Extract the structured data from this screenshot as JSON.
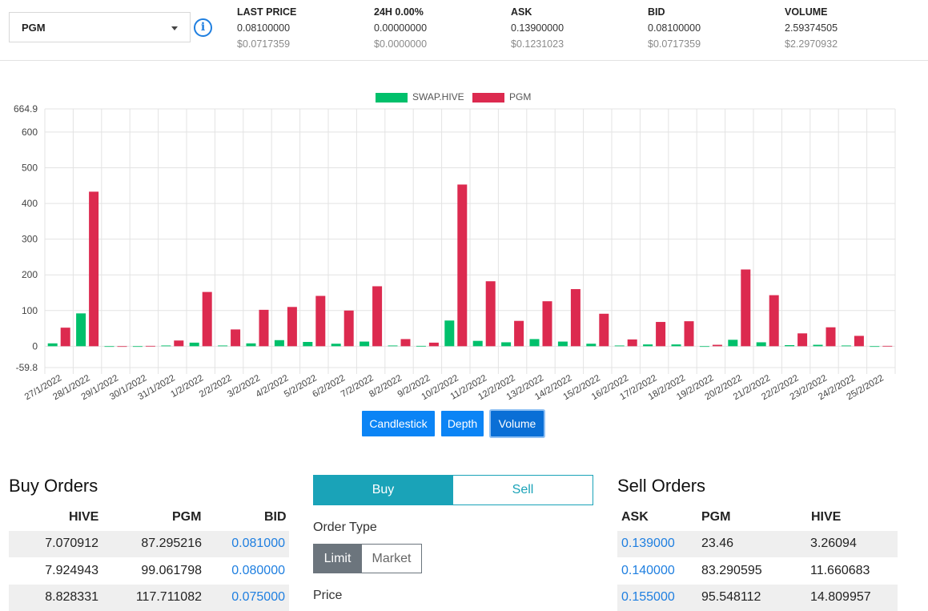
{
  "ticker": {
    "symbol": "PGM",
    "stats": [
      {
        "label": "LAST PRICE",
        "value": "0.08100000",
        "usd": "$0.0717359"
      },
      {
        "label": "24H 0.00%",
        "value": "0.00000000",
        "usd": "$0.0000000"
      },
      {
        "label": "ASK",
        "value": "0.13900000",
        "usd": "$0.1231023"
      },
      {
        "label": "BID",
        "value": "0.08100000",
        "usd": "$0.0717359"
      },
      {
        "label": "VOLUME",
        "value": "2.59374505",
        "usd": "$2.2970932"
      }
    ]
  },
  "chart_buttons": [
    {
      "label": "Candlestick",
      "active": false
    },
    {
      "label": "Depth",
      "active": false
    },
    {
      "label": "Volume",
      "active": true
    }
  ],
  "chart_data": {
    "type": "bar",
    "categories": [
      "27/1/2022",
      "28/1/2022",
      "29/1/2022",
      "30/1/2022",
      "31/1/2022",
      "1/2/2022",
      "2/2/2022",
      "3/2/2022",
      "4/2/2022",
      "5/2/2022",
      "6/2/2022",
      "7/2/2022",
      "8/2/2022",
      "9/2/2022",
      "10/2/2022",
      "11/2/2022",
      "12/2/2022",
      "13/2/2022",
      "14/2/2022",
      "15/2/2022",
      "16/2/2022",
      "17/2/2022",
      "18/2/2022",
      "19/2/2022",
      "20/2/2022",
      "21/2/2022",
      "22/2/2022",
      "23/2/2022",
      "24/2/2022",
      "25/2/2022"
    ],
    "series": [
      {
        "name": "SWAP.HIVE",
        "color": "#00c06b",
        "values": [
          8,
          92,
          0,
          0,
          2,
          10,
          2,
          8,
          17,
          12,
          7,
          13,
          2,
          1,
          72,
          15,
          11,
          20,
          13,
          7,
          2,
          5,
          5,
          0,
          18,
          11,
          3,
          4,
          2,
          0
        ]
      },
      {
        "name": "PGM",
        "color": "#dc2a4f",
        "values": [
          52,
          433,
          0,
          1,
          16,
          152,
          47,
          102,
          110,
          141,
          100,
          168,
          20,
          10,
          453,
          182,
          71,
          126,
          160,
          91,
          19,
          68,
          70,
          4,
          215,
          143,
          36,
          53,
          29,
          1
        ]
      }
    ],
    "ylim": [
      -59.8,
      664.9
    ],
    "yticks_labels": [
      "664.9",
      "600",
      "500",
      "400",
      "300",
      "200",
      "100",
      "0",
      "-59.8"
    ],
    "yticks": [
      664.9,
      600,
      500,
      400,
      300,
      200,
      100,
      0,
      -59.8
    ],
    "legend_position": "top-center",
    "grid": true
  },
  "buy_orders": {
    "title": "Buy Orders",
    "headers": [
      "HIVE",
      "PGM",
      "BID"
    ],
    "rows": [
      [
        "7.070912",
        "87.295216",
        "0.081000"
      ],
      [
        "7.924943",
        "99.061798",
        "0.080000"
      ],
      [
        "8.828331",
        "117.711082",
        "0.075000"
      ]
    ]
  },
  "order_form": {
    "tabs": [
      "Buy",
      "Sell"
    ],
    "order_type_label": "Order Type",
    "types": [
      "Limit",
      "Market"
    ],
    "price_label": "Price"
  },
  "sell_orders": {
    "title": "Sell Orders",
    "headers": [
      "ASK",
      "PGM",
      "HIVE"
    ],
    "rows": [
      [
        "0.139000",
        "23.46",
        "3.26094"
      ],
      [
        "0.140000",
        "83.290595",
        "11.660683"
      ],
      [
        "0.155000",
        "95.548112",
        "14.809957"
      ]
    ]
  }
}
